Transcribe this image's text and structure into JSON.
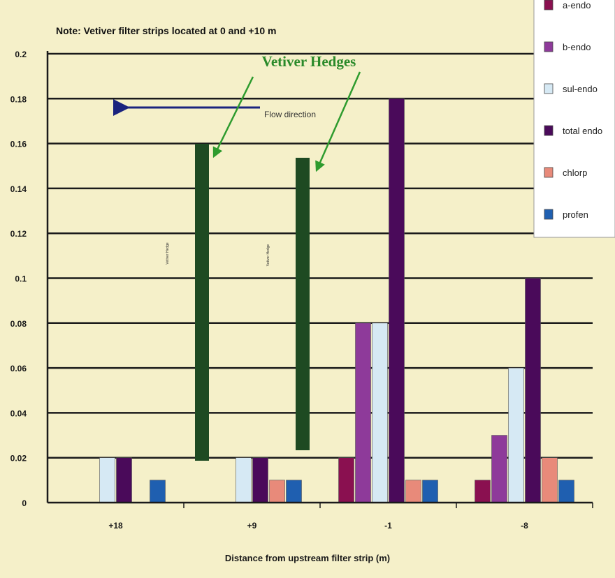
{
  "chart_data": {
    "type": "bar",
    "note": "Note: Vetiver filter strips located at 0 and +10 m",
    "xlabel": "Distance from upstream filter strip (m)",
    "ylabel": "",
    "ylim": [
      0,
      0.2
    ],
    "yticks": [
      "0",
      "0.02",
      "0.04",
      "0.06",
      "0.08",
      "0.1",
      "0.12",
      "0.14",
      "0.16",
      "0.18",
      "0.2"
    ],
    "grid": true,
    "legend_position": "right",
    "categories": [
      "+18",
      "+9",
      "-1",
      "-8"
    ],
    "series": [
      {
        "name": "a-endo",
        "color": "#8a1050",
        "values": [
          0,
          0,
          0.02,
          0.01
        ]
      },
      {
        "name": "b-endo",
        "color": "#8e3a9a",
        "values": [
          0,
          0,
          0.08,
          0.03
        ]
      },
      {
        "name": "sul-endo",
        "color": "#d6e9f4",
        "values": [
          0.02,
          0.02,
          0.08,
          0.06
        ]
      },
      {
        "name": "total endo",
        "color": "#4a0a5a",
        "values": [
          0.02,
          0.02,
          0.18,
          0.1
        ]
      },
      {
        "name": "chlorp",
        "color": "#e88a7a",
        "values": [
          0,
          0.01,
          0.01,
          0.02
        ]
      },
      {
        "name": "profen",
        "color": "#1f5fb0",
        "values": [
          0.01,
          0.01,
          0.01,
          0.01
        ]
      }
    ],
    "annotations": {
      "hedges_title": "Vetiver Hedges",
      "flow_label": "Flow direction",
      "hedge_labels": [
        "Vetiver Hedge",
        "Vetiver Hedge"
      ]
    }
  },
  "colors": {
    "plot_background": "#f5f0c9",
    "gridline": "#1a1a1a",
    "hedge": "#1e4a22",
    "arrow": "#1a237e",
    "pointer": "#2e9b2e"
  }
}
